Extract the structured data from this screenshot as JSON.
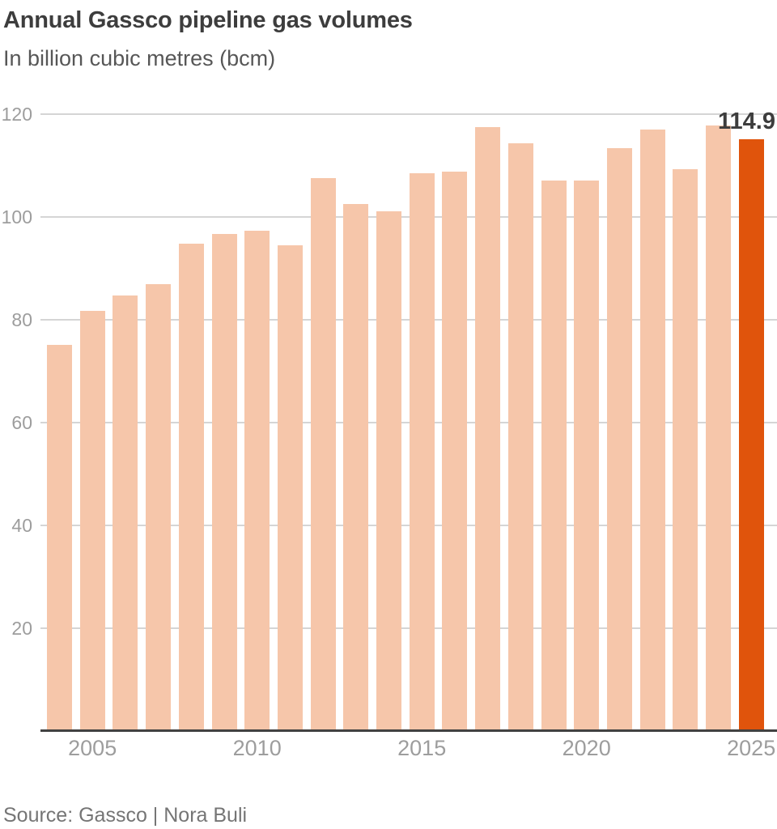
{
  "header": {
    "title": "Annual Gassco pipeline gas volumes",
    "subtitle": "In billion cubic metres (bcm)"
  },
  "footer": {
    "source": "Source: Gassco | Nora Buli"
  },
  "colors": {
    "bar": "#f6c6aa",
    "highlight": "#e0540c",
    "gridline": "#d5d5d5",
    "axis_line": "#414141",
    "title_text": "#3d3d3d",
    "subtitle_text": "#575757",
    "tick_text": "#9d9d9d",
    "value_label_text": "#3d3d3d",
    "source_text": "#757575"
  },
  "chart_data": {
    "type": "bar",
    "title": "Annual Gassco pipeline gas volumes",
    "subtitle": "In billion cubic metres (bcm)",
    "unit": "bcm",
    "categories": [
      "2004",
      "2005",
      "2006",
      "2007",
      "2008",
      "2009",
      "2010",
      "2011",
      "2012",
      "2013",
      "2014",
      "2015",
      "2016",
      "2017",
      "2018",
      "2019",
      "2020",
      "2021",
      "2022",
      "2023",
      "2024",
      "2025"
    ],
    "values": [
      75.0,
      81.5,
      84.6,
      86.7,
      94.6,
      96.6,
      97.2,
      94.3,
      107.4,
      102.4,
      101.0,
      108.3,
      108.6,
      117.4,
      114.2,
      106.9,
      106.9,
      113.2,
      116.9,
      109.1,
      117.6,
      114.9
    ],
    "highlight_category": "2025",
    "highlight_label": "114.9",
    "xlabel": "",
    "ylabel": "",
    "ylim": [
      0,
      120
    ],
    "yticks": [
      20,
      40,
      60,
      80,
      100,
      120
    ],
    "xticks": [
      "2005",
      "2010",
      "2015",
      "2020",
      "2025"
    ],
    "grid": true,
    "legend": "none",
    "source": "Source: Gassco | Nora Buli"
  }
}
